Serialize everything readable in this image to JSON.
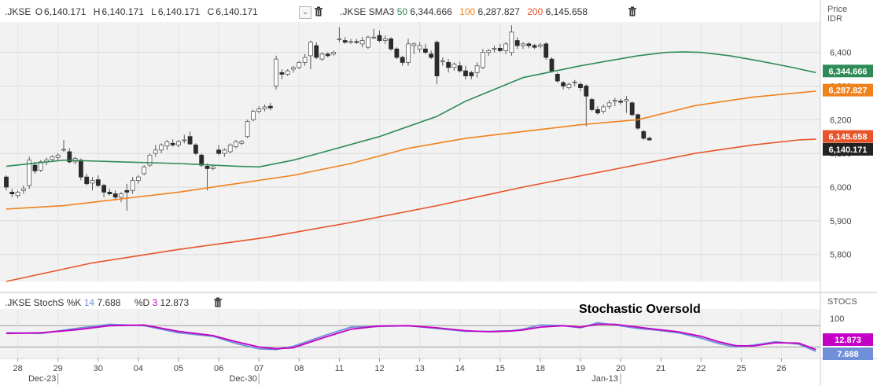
{
  "legend": {
    "symbol": ".JKSE",
    "open_label": "O",
    "open": "6,140.171",
    "high_label": "H",
    "high": "6,140.171",
    "low_label": "L",
    "low": "6,140.171",
    "close_label": "C",
    "close": "6,140.171",
    "sma_label": ".JKSE SMA3",
    "sma50_period": "50",
    "sma50_value": "6,344.666",
    "sma100_period": "100",
    "sma100_value": "6,287.827",
    "sma200_period": "200",
    "sma200_value": "6,145.658"
  },
  "price_axis_header": {
    "line1": "Price",
    "line2": "IDR"
  },
  "stoch_legend": {
    "label": ".JKSE StochS %K",
    "k_period": "14",
    "k_value": "7.688",
    "d_label": "%D",
    "d_period": "3",
    "d_value": "12.873"
  },
  "stoch_axis_header": "STOCS",
  "annotation": "Stochastic Oversold",
  "colors": {
    "up_candle": "#ffffff",
    "down_candle": "#2b2b2b",
    "wick": "#555555",
    "sma50": "#2e8b57",
    "sma100": "#f0821e",
    "sma200": "#e8542a",
    "stoch_k": "#6f8fd8",
    "stoch_d": "#c400c4",
    "plot_bg": "#f2f2f2",
    "badge_close": "#222222"
  },
  "chart_data": [
    {
      "type": "candlestick",
      "title": ".JKSE",
      "ylabel": "Price IDR",
      "ylim": [
        5720,
        6490
      ],
      "yticks": [
        "5,800",
        "5,900",
        "6,000",
        "6,100",
        "6,200",
        "6,300",
        "6,400"
      ],
      "x_labels": [
        "28",
        "29",
        "30",
        "04",
        "05",
        "06",
        "07",
        "08",
        "11",
        "12",
        "13",
        "14",
        "15",
        "18",
        "19",
        "20",
        "21",
        "22",
        "25",
        "26"
      ],
      "x_label_positions": [
        2,
        9,
        16,
        23,
        30,
        37,
        44,
        51,
        58,
        65,
        72,
        79,
        86,
        93,
        100,
        107,
        114,
        121,
        128,
        135
      ],
      "x_sublabels": [
        {
          "text": "Dec-23",
          "index": 9
        },
        {
          "text": "Dec-30",
          "index": 44
        },
        {
          "text": "Jan-13",
          "index": 107
        }
      ],
      "grid": true,
      "candles": [
        {
          "o": 6030,
          "h": 6035,
          "l": 5990,
          "c": 6000
        },
        {
          "o": 5985,
          "h": 5995,
          "l": 5970,
          "c": 5980
        },
        {
          "o": 5975,
          "h": 5990,
          "l": 5968,
          "c": 5985
        },
        {
          "o": 5990,
          "h": 6005,
          "l": 5980,
          "c": 5995
        },
        {
          "o": 6005,
          "h": 6090,
          "l": 5995,
          "c": 6080
        },
        {
          "o": 6065,
          "h": 6075,
          "l": 6040,
          "c": 6048
        },
        {
          "o": 6050,
          "h": 6080,
          "l": 6045,
          "c": 6075
        },
        {
          "o": 6075,
          "h": 6088,
          "l": 6065,
          "c": 6080
        },
        {
          "o": 6082,
          "h": 6095,
          "l": 6075,
          "c": 6090
        },
        {
          "o": 6088,
          "h": 6100,
          "l": 6080,
          "c": 6095
        },
        {
          "o": 6112,
          "h": 6140,
          "l": 6105,
          "c": 6112
        },
        {
          "o": 6105,
          "h": 6115,
          "l": 6070,
          "c": 6075
        },
        {
          "o": 6075,
          "h": 6090,
          "l": 6068,
          "c": 6085
        },
        {
          "o": 6080,
          "h": 6085,
          "l": 6020,
          "c": 6030
        },
        {
          "o": 6030,
          "h": 6040,
          "l": 6005,
          "c": 6010
        },
        {
          "o": 6012,
          "h": 6030,
          "l": 5990,
          "c": 6020
        },
        {
          "o": 6022,
          "h": 6035,
          "l": 6000,
          "c": 6005
        },
        {
          "o": 6005,
          "h": 6010,
          "l": 5970,
          "c": 5985
        },
        {
          "o": 5985,
          "h": 5995,
          "l": 5975,
          "c": 5980
        },
        {
          "o": 5980,
          "h": 5990,
          "l": 5960,
          "c": 5970
        },
        {
          "o": 5970,
          "h": 5985,
          "l": 5955,
          "c": 5980
        },
        {
          "o": 5990,
          "h": 6010,
          "l": 5930,
          "c": 5985
        },
        {
          "o": 5990,
          "h": 6030,
          "l": 5980,
          "c": 6020
        },
        {
          "o": 6020,
          "h": 6035,
          "l": 6010,
          "c": 6030
        },
        {
          "o": 6040,
          "h": 6065,
          "l": 6035,
          "c": 6060
        },
        {
          "o": 6065,
          "h": 6100,
          "l": 6060,
          "c": 6095
        },
        {
          "o": 6100,
          "h": 6125,
          "l": 6090,
          "c": 6110
        },
        {
          "o": 6110,
          "h": 6130,
          "l": 6100,
          "c": 6125
        },
        {
          "o": 6122,
          "h": 6140,
          "l": 6110,
          "c": 6135
        },
        {
          "o": 6130,
          "h": 6142,
          "l": 6120,
          "c": 6125
        },
        {
          "o": 6125,
          "h": 6140,
          "l": 6118,
          "c": 6135
        },
        {
          "o": 6138,
          "h": 6155,
          "l": 6130,
          "c": 6140
        },
        {
          "o": 6150,
          "h": 6165,
          "l": 6125,
          "c": 6128
        },
        {
          "o": 6125,
          "h": 6130,
          "l": 6095,
          "c": 6100
        },
        {
          "o": 6095,
          "h": 6100,
          "l": 6060,
          "c": 6065
        },
        {
          "o": 6062,
          "h": 6070,
          "l": 5990,
          "c": 6055
        },
        {
          "o": 6055,
          "h": 6065,
          "l": 6050,
          "c": 6060
        },
        {
          "o": 6110,
          "h": 6125,
          "l": 6095,
          "c": 6100
        },
        {
          "o": 6100,
          "h": 6115,
          "l": 6090,
          "c": 6110
        },
        {
          "o": 6105,
          "h": 6130,
          "l": 6100,
          "c": 6125
        },
        {
          "o": 6120,
          "h": 6140,
          "l": 6115,
          "c": 6135
        },
        {
          "o": 6130,
          "h": 6140,
          "l": 6125,
          "c": 6135
        },
        {
          "o": 6150,
          "h": 6200,
          "l": 6145,
          "c": 6195
        },
        {
          "o": 6200,
          "h": 6230,
          "l": 6195,
          "c": 6225
        },
        {
          "o": 6225,
          "h": 6240,
          "l": 6218,
          "c": 6232
        },
        {
          "o": 6232,
          "h": 6245,
          "l": 6225,
          "c": 6238
        },
        {
          "o": 6240,
          "h": 6250,
          "l": 6228,
          "c": 6235
        },
        {
          "o": 6300,
          "h": 6390,
          "l": 6290,
          "c": 6380
        },
        {
          "o": 6340,
          "h": 6350,
          "l": 6320,
          "c": 6335
        },
        {
          "o": 6335,
          "h": 6350,
          "l": 6330,
          "c": 6345
        },
        {
          "o": 6350,
          "h": 6360,
          "l": 6340,
          "c": 6355
        },
        {
          "o": 6355,
          "h": 6375,
          "l": 6350,
          "c": 6370
        },
        {
          "o": 6370,
          "h": 6395,
          "l": 6360,
          "c": 6385
        },
        {
          "o": 6390,
          "h": 6435,
          "l": 6350,
          "c": 6430
        },
        {
          "o": 6420,
          "h": 6430,
          "l": 6380,
          "c": 6385
        },
        {
          "o": 6380,
          "h": 6400,
          "l": 6375,
          "c": 6395
        },
        {
          "o": 6395,
          "h": 6400,
          "l": 6385,
          "c": 6390
        },
        {
          "o": 6395,
          "h": 6405,
          "l": 6390,
          "c": 6400
        },
        {
          "o": 6440,
          "h": 6475,
          "l": 6430,
          "c": 6440
        },
        {
          "o": 6435,
          "h": 6445,
          "l": 6425,
          "c": 6430
        },
        {
          "o": 6430,
          "h": 6440,
          "l": 6425,
          "c": 6432
        },
        {
          "o": 6432,
          "h": 6440,
          "l": 6425,
          "c": 6430
        },
        {
          "o": 6425,
          "h": 6445,
          "l": 6415,
          "c": 6435
        },
        {
          "o": 6415,
          "h": 6450,
          "l": 6410,
          "c": 6445
        },
        {
          "o": 6445,
          "h": 6470,
          "l": 6440,
          "c": 6445
        },
        {
          "o": 6450,
          "h": 6465,
          "l": 6430,
          "c": 6435
        },
        {
          "o": 6435,
          "h": 6450,
          "l": 6425,
          "c": 6440
        },
        {
          "o": 6440,
          "h": 6445,
          "l": 6405,
          "c": 6410
        },
        {
          "o": 6410,
          "h": 6415,
          "l": 6380,
          "c": 6385
        },
        {
          "o": 6385,
          "h": 6390,
          "l": 6360,
          "c": 6370
        },
        {
          "o": 6370,
          "h": 6440,
          "l": 6360,
          "c": 6425
        },
        {
          "o": 6420,
          "h": 6430,
          "l": 6395,
          "c": 6425
        },
        {
          "o": 6410,
          "h": 6430,
          "l": 6400,
          "c": 6420
        },
        {
          "o": 6410,
          "h": 6425,
          "l": 6395,
          "c": 6400
        },
        {
          "o": 6395,
          "h": 6405,
          "l": 6380,
          "c": 6385
        },
        {
          "o": 6430,
          "h": 6435,
          "l": 6305,
          "c": 6330
        },
        {
          "o": 6375,
          "h": 6385,
          "l": 6360,
          "c": 6375
        },
        {
          "o": 6370,
          "h": 6380,
          "l": 6340,
          "c": 6355
        },
        {
          "o": 6355,
          "h": 6370,
          "l": 6345,
          "c": 6365
        },
        {
          "o": 6360,
          "h": 6372,
          "l": 6340,
          "c": 6345
        },
        {
          "o": 6345,
          "h": 6360,
          "l": 6320,
          "c": 6330
        },
        {
          "o": 6340,
          "h": 6345,
          "l": 6320,
          "c": 6330
        },
        {
          "o": 6340,
          "h": 6370,
          "l": 6325,
          "c": 6360
        },
        {
          "o": 6355,
          "h": 6410,
          "l": 6350,
          "c": 6400
        },
        {
          "o": 6400,
          "h": 6410,
          "l": 6390,
          "c": 6405
        },
        {
          "o": 6410,
          "h": 6420,
          "l": 6400,
          "c": 6412
        },
        {
          "o": 6412,
          "h": 6425,
          "l": 6400,
          "c": 6405
        },
        {
          "o": 6405,
          "h": 6430,
          "l": 6395,
          "c": 6425
        },
        {
          "o": 6400,
          "h": 6480,
          "l": 6390,
          "c": 6460
        },
        {
          "o": 6435,
          "h": 6445,
          "l": 6410,
          "c": 6420
        },
        {
          "o": 6420,
          "h": 6430,
          "l": 6410,
          "c": 6425
        },
        {
          "o": 6425,
          "h": 6430,
          "l": 6412,
          "c": 6420
        },
        {
          "o": 6420,
          "h": 6425,
          "l": 6410,
          "c": 6415
        },
        {
          "o": 6418,
          "h": 6428,
          "l": 6412,
          "c": 6422
        },
        {
          "o": 6425,
          "h": 6430,
          "l": 6378,
          "c": 6385
        },
        {
          "o": 6380,
          "h": 6385,
          "l": 6340,
          "c": 6345
        },
        {
          "o": 6335,
          "h": 6340,
          "l": 6310,
          "c": 6315
        },
        {
          "o": 6310,
          "h": 6315,
          "l": 6290,
          "c": 6300
        },
        {
          "o": 6295,
          "h": 6310,
          "l": 6290,
          "c": 6305
        },
        {
          "o": 6310,
          "h": 6318,
          "l": 6300,
          "c": 6312
        },
        {
          "o": 6305,
          "h": 6312,
          "l": 6285,
          "c": 6295
        },
        {
          "o": 6300,
          "h": 6305,
          "l": 6180,
          "c": 6270
        },
        {
          "o": 6260,
          "h": 6265,
          "l": 6225,
          "c": 6230
        },
        {
          "o": 6230,
          "h": 6240,
          "l": 6215,
          "c": 6220
        },
        {
          "o": 6225,
          "h": 6245,
          "l": 6218,
          "c": 6238
        },
        {
          "o": 6240,
          "h": 6258,
          "l": 6232,
          "c": 6250
        },
        {
          "o": 6255,
          "h": 6265,
          "l": 6240,
          "c": 6258
        },
        {
          "o": 6255,
          "h": 6262,
          "l": 6245,
          "c": 6252
        },
        {
          "o": 6255,
          "h": 6270,
          "l": 6220,
          "c": 6260
        },
        {
          "o": 6250,
          "h": 6255,
          "l": 6210,
          "c": 6215
        },
        {
          "o": 6215,
          "h": 6218,
          "l": 6170,
          "c": 6175
        },
        {
          "o": 6165,
          "h": 6170,
          "l": 6140,
          "c": 6145
        },
        {
          "o": 6145,
          "h": 6150,
          "l": 6138,
          "c": 6140
        }
      ],
      "series": [
        {
          "name": "SMA 50",
          "color": "#2e8b57",
          "x": [
            0,
            10,
            20,
            30,
            40,
            44,
            50,
            55,
            65,
            75,
            80,
            90,
            100,
            110,
            115,
            118,
            121,
            126,
            131,
            137,
            141
          ],
          "values": [
            6062,
            6080,
            6075,
            6070,
            6062,
            6060,
            6080,
            6103,
            6150,
            6210,
            6255,
            6325,
            6360,
            6390,
            6400,
            6401,
            6400,
            6390,
            6375,
            6355,
            6340
          ]
        },
        {
          "name": "SMA 100",
          "color": "#f0821e",
          "x": [
            0,
            10,
            20,
            30,
            40,
            50,
            60,
            70,
            80,
            90,
            100,
            110,
            120,
            130,
            141
          ],
          "values": [
            5935,
            5945,
            5965,
            5985,
            6010,
            6035,
            6070,
            6115,
            6145,
            6165,
            6185,
            6200,
            6242,
            6267,
            6285
          ]
        },
        {
          "name": "SMA 200",
          "color": "#e8542a",
          "x": [
            0,
            15,
            30,
            45,
            60,
            75,
            90,
            105,
            120,
            130,
            138,
            141
          ],
          "values": [
            5720,
            5775,
            5815,
            5850,
            5895,
            5945,
            6000,
            6050,
            6100,
            6125,
            6140,
            6142
          ]
        }
      ]
    },
    {
      "type": "line",
      "title": ".JKSE StochS",
      "ylabel": "STOCS",
      "ylim": [
        -10,
        127
      ],
      "yticks": [
        "100"
      ],
      "reference_lines": [
        80,
        20
      ],
      "series": [
        {
          "name": "%K",
          "period": "14",
          "color": "#6f8fd8",
          "x": [
            0,
            6,
            12,
            18,
            24,
            30,
            36,
            40,
            44,
            47,
            50,
            55,
            60,
            65,
            70,
            75,
            80,
            84,
            88,
            90,
            93,
            97,
            100,
            103,
            106,
            110,
            113,
            117,
            121,
            124,
            127,
            130,
            134,
            138,
            141
          ],
          "values": [
            60,
            58,
            72,
            84,
            80,
            60,
            50,
            30,
            15,
            13,
            22,
            50,
            76,
            78,
            80,
            72,
            64,
            64,
            66,
            70,
            82,
            80,
            74,
            88,
            82,
            72,
            68,
            60,
            45,
            30,
            20,
            25,
            35,
            28,
            8
          ]
        },
        {
          "name": "%D",
          "period": "3",
          "color": "#c400c4",
          "x": [
            0,
            6,
            12,
            18,
            24,
            30,
            36,
            40,
            44,
            47,
            50,
            55,
            60,
            65,
            70,
            75,
            80,
            84,
            88,
            90,
            93,
            97,
            100,
            103,
            106,
            110,
            113,
            117,
            121,
            124,
            127,
            130,
            134,
            138,
            141
          ],
          "values": [
            58,
            60,
            68,
            80,
            82,
            64,
            52,
            35,
            20,
            15,
            18,
            45,
            70,
            79,
            80,
            74,
            66,
            63,
            65,
            68,
            76,
            80,
            76,
            84,
            84,
            76,
            70,
            63,
            50,
            35,
            24,
            23,
            32,
            31,
            13
          ]
        }
      ]
    }
  ]
}
